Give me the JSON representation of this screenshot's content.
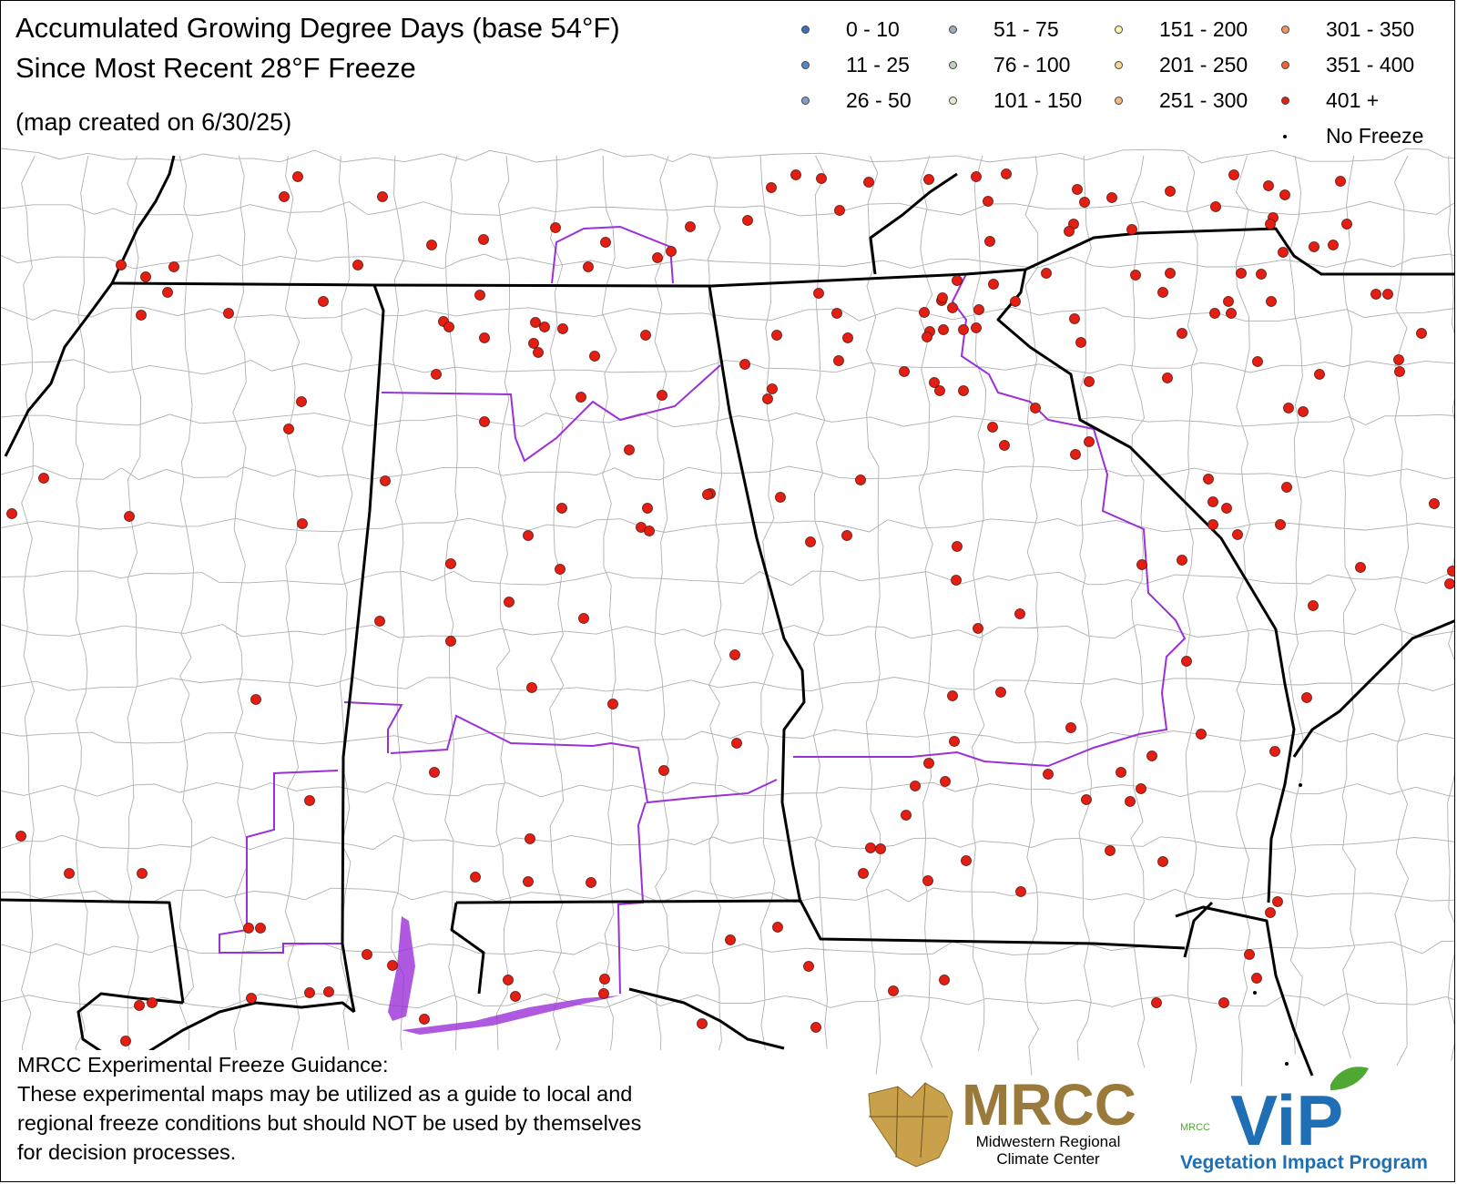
{
  "title": {
    "line1": "Accumulated Growing Degree Days (base 54°F)",
    "line2": "Since Most Recent 28°F Freeze",
    "created": "(map created on 6/30/25)"
  },
  "legend": [
    {
      "label": "0 - 10",
      "color": "#3a6fc4"
    },
    {
      "label": "11 - 25",
      "color": "#5a86c8"
    },
    {
      "label": "26 - 50",
      "color": "#7f9fc8"
    },
    {
      "label": "51 - 75",
      "color": "#9aaebd"
    },
    {
      "label": "76 - 100",
      "color": "#c3cfc1"
    },
    {
      "label": "101 - 150",
      "color": "#e3ebc7"
    },
    {
      "label": "151 - 200",
      "color": "#fff3b0"
    },
    {
      "label": "201 - 250",
      "color": "#fad98c"
    },
    {
      "label": "251 - 300",
      "color": "#f6b97c"
    },
    {
      "label": "301 - 350",
      "color": "#f39460"
    },
    {
      "label": "351 - 400",
      "color": "#ec6538"
    },
    {
      "label": "401 +",
      "color": "#e41e12"
    },
    {
      "label": "No Freeze",
      "color": "#000000"
    }
  ],
  "colors": {
    "state_border": "#000000",
    "county_border": "#b0b0b0",
    "region_border": "#9b30d9",
    "dominant_category": "401 +"
  },
  "notes": [
    "MRCC Experimental Freeze Guidance:",
    "These experimental maps may be utilized as a guide to local and",
    "regional freeze conditions but should NOT be used by themselves",
    "for decision processes."
  ],
  "logos": {
    "mrcc": {
      "name": "MRCC",
      "subtitle_1": "Midwestern Regional",
      "subtitle_2": "Climate Center"
    },
    "vip": {
      "small": "MRCC",
      "name": "ViP",
      "subtitle": "Vegetation Impact Program"
    }
  },
  "map": {
    "category_401_plus_station_count": 200,
    "no_freeze_station_count": 3
  }
}
